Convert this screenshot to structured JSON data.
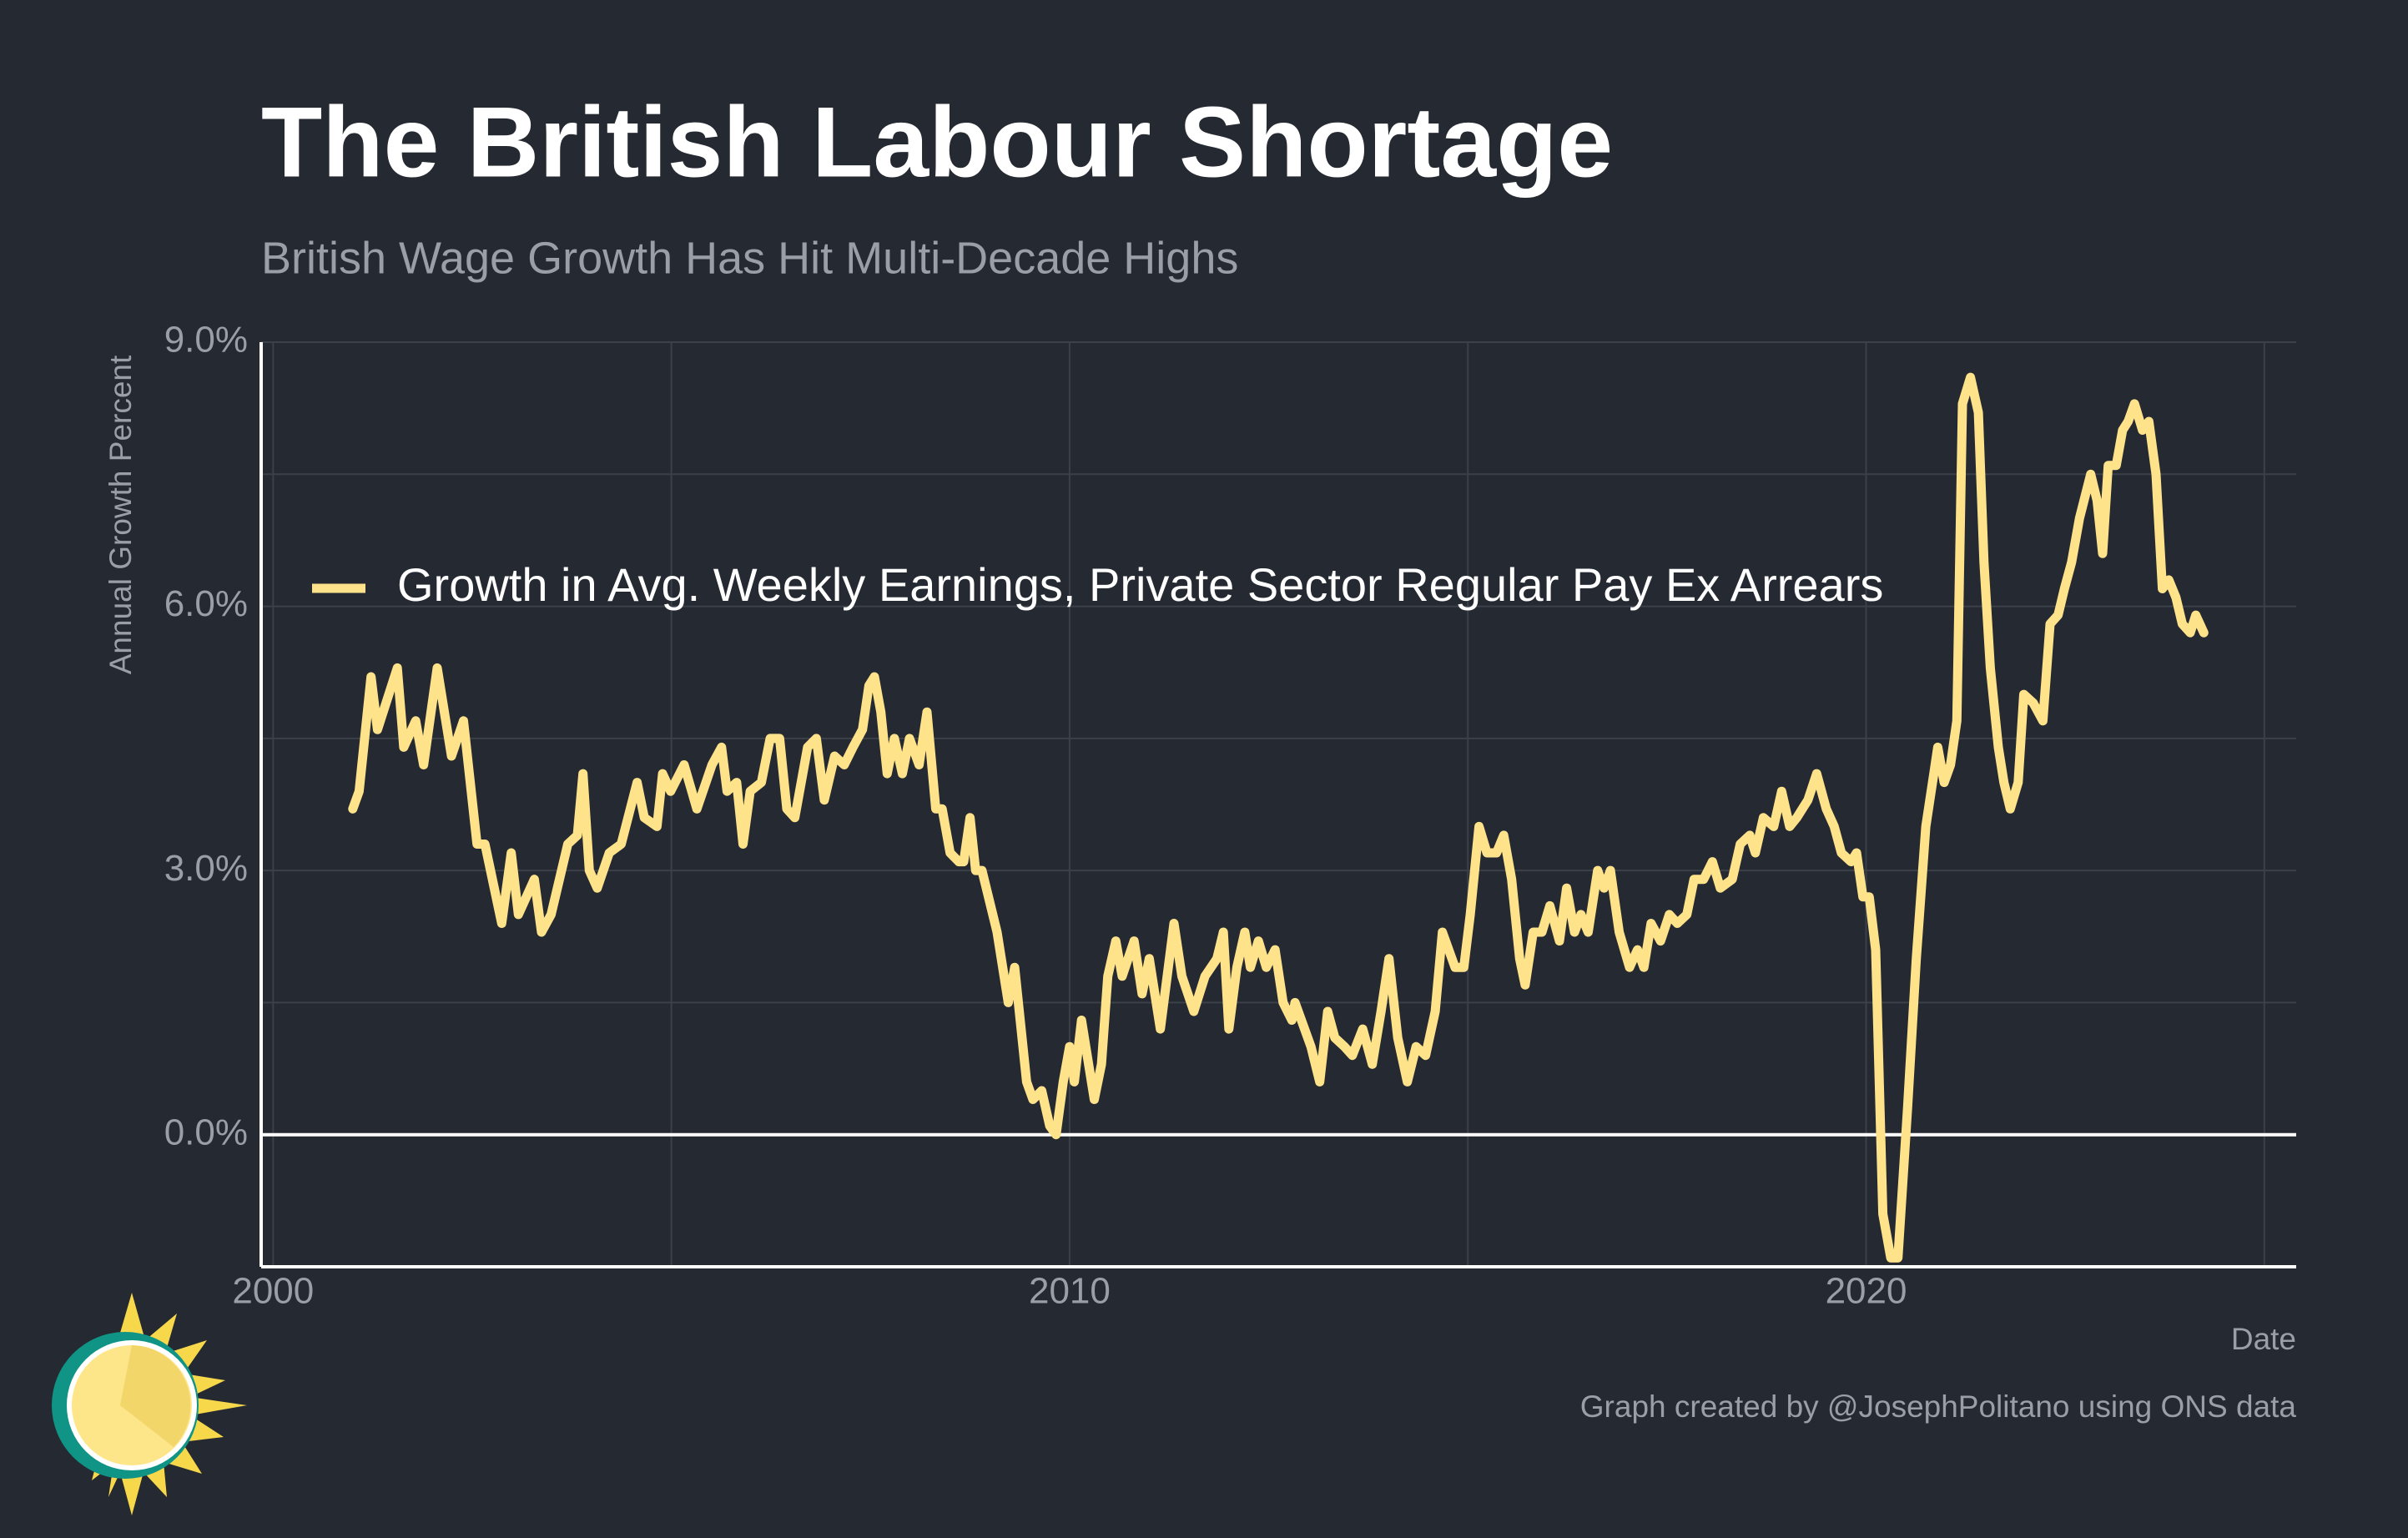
{
  "chart_data": {
    "type": "line",
    "title": "The British Labour Shortage",
    "subtitle": "British Wage Growth Has Hit Multi-Decade Highs",
    "y_label": "Annual Growth Percent",
    "x_label": "Date",
    "caption": "Graph created by @JosephPolitano using ONS data",
    "xlim": [
      1999.85,
      2025.4
    ],
    "xticks": [
      2000,
      2010,
      2020
    ],
    "x_minor_grid": [
      2005,
      2015,
      2025
    ],
    "ylim": [
      -1.5,
      9.0
    ],
    "yticks": [
      {
        "value": 0,
        "label": "0.0%"
      },
      {
        "value": 3,
        "label": "3.0%"
      },
      {
        "value": 6,
        "label": "6.0%"
      },
      {
        "value": 9,
        "label": "9.0%"
      }
    ],
    "y_minor_grid": [
      1.5,
      4.5,
      7.5
    ],
    "grid": true,
    "zero_line": true,
    "legend": "upper left",
    "x": [
      2001.0,
      2001.08,
      2001.23,
      2001.31,
      2001.56,
      2001.64,
      2001.79,
      2001.89,
      2002.06,
      2002.24,
      2002.39,
      2002.56,
      2002.66,
      2002.87,
      2002.99,
      2003.08,
      2003.28,
      2003.37,
      2003.49,
      2003.7,
      2003.82,
      2003.89,
      2003.97,
      2004.07,
      2004.22,
      2004.37,
      2004.57,
      2004.66,
      2004.82,
      2004.89,
      2004.99,
      2005.16,
      2005.32,
      2005.51,
      2005.63,
      2005.7,
      2005.82,
      2005.9,
      2005.99,
      2006.13,
      2006.24,
      2006.36,
      2006.45,
      2006.55,
      2006.71,
      2006.82,
      2006.92,
      2007.05,
      2007.17,
      2007.28,
      2007.4,
      2007.48,
      2007.55,
      2007.63,
      2007.71,
      2007.8,
      2007.9,
      2007.99,
      2008.11,
      2008.21,
      2008.32,
      2008.4,
      2008.5,
      2008.61,
      2008.67,
      2008.75,
      2008.82,
      2008.9,
      2009.09,
      2009.23,
      2009.31,
      2009.46,
      2009.54,
      2009.65,
      2009.75,
      2009.83,
      2009.92,
      2010.0,
      2010.06,
      2010.15,
      2010.31,
      2010.4,
      2010.48,
      2010.58,
      2010.66,
      2010.81,
      2010.91,
      2011.0,
      2011.14,
      2011.31,
      2011.41,
      2011.56,
      2011.7,
      2011.85,
      2011.93,
      2012.0,
      2012.1,
      2012.2,
      2012.27,
      2012.37,
      2012.47,
      2012.58,
      2012.68,
      2012.79,
      2012.83,
      2013.03,
      2013.14,
      2013.24,
      2013.33,
      2013.45,
      2013.55,
      2013.68,
      2013.8,
      2013.91,
      2014.01,
      2014.12,
      2014.24,
      2014.35,
      2014.47,
      2014.59,
      2014.68,
      2014.84,
      2014.95,
      2015.03,
      2015.14,
      2015.24,
      2015.36,
      2015.45,
      2015.55,
      2015.65,
      2015.72,
      2015.82,
      2015.93,
      2016.03,
      2016.15,
      2016.24,
      2016.34,
      2016.42,
      2016.51,
      2016.63,
      2016.71,
      2016.79,
      2016.9,
      2017.03,
      2017.13,
      2017.21,
      2017.3,
      2017.42,
      2017.53,
      2017.63,
      2017.75,
      2017.84,
      2017.96,
      2018.07,
      2018.17,
      2018.32,
      2018.42,
      2018.54,
      2018.61,
      2018.71,
      2018.84,
      2018.94,
      2019.04,
      2019.13,
      2019.27,
      2019.38,
      2019.5,
      2019.6,
      2019.69,
      2019.81,
      2019.88,
      2019.96,
      2020.04,
      2020.12,
      2020.21,
      2020.31,
      2020.4,
      2020.52,
      2020.63,
      2020.75,
      2020.85,
      2020.9,
      2020.98,
      2021.06,
      2021.14,
      2021.21,
      2021.31,
      2021.41,
      2021.48,
      2021.56,
      2021.66,
      2021.73,
      2021.81,
      2021.91,
      2021.98,
      2022.1,
      2022.22,
      2022.31,
      2022.41,
      2022.49,
      2022.58,
      2022.68,
      2022.82,
      2022.9,
      2022.97,
      2023.04,
      2023.14,
      2023.22,
      2023.29,
      2023.37,
      2023.47,
      2023.55,
      2023.64,
      2023.72,
      2023.8,
      2023.89,
      2023.97,
      2024.07,
      2024.14,
      2024.24
    ],
    "series": [
      {
        "name": "Growth in Avg. Weekly Earnings, Private Sector Regular Pay Ex Arrears",
        "color": "#fee38b",
        "values": [
          3.7,
          3.9,
          5.2,
          4.6,
          5.3,
          4.4,
          4.7,
          4.2,
          5.3,
          4.3,
          4.7,
          3.3,
          3.3,
          2.4,
          3.2,
          2.5,
          2.9,
          2.3,
          2.5,
          3.3,
          3.4,
          4.1,
          3.0,
          2.8,
          3.2,
          3.3,
          4.0,
          3.6,
          3.5,
          4.1,
          3.9,
          4.2,
          3.7,
          4.2,
          4.4,
          3.9,
          4.0,
          3.3,
          3.9,
          4.0,
          4.5,
          4.5,
          3.7,
          3.6,
          4.4,
          4.5,
          3.8,
          4.3,
          4.2,
          4.4,
          4.6,
          5.1,
          5.2,
          4.8,
          4.1,
          4.5,
          4.1,
          4.5,
          4.2,
          4.8,
          3.7,
          3.7,
          3.2,
          3.1,
          3.1,
          3.6,
          3.0,
          3.0,
          2.3,
          1.5,
          1.9,
          0.6,
          0.4,
          0.5,
          0.1,
          0.0,
          0.6,
          1.0,
          0.6,
          1.3,
          0.4,
          0.8,
          1.8,
          2.2,
          1.8,
          2.2,
          1.6,
          2.0,
          1.2,
          2.4,
          1.8,
          1.4,
          1.8,
          2.0,
          2.3,
          1.2,
          1.9,
          2.3,
          1.9,
          2.2,
          1.9,
          2.1,
          1.5,
          1.3,
          1.5,
          1.0,
          0.6,
          1.4,
          1.1,
          1.0,
          0.9,
          1.2,
          0.8,
          1.4,
          2.0,
          1.1,
          0.6,
          1.0,
          0.9,
          1.4,
          2.3,
          1.9,
          1.9,
          2.5,
          3.5,
          3.2,
          3.2,
          3.4,
          2.9,
          2.0,
          1.7,
          2.3,
          2.3,
          2.6,
          2.2,
          2.8,
          2.3,
          2.5,
          2.3,
          3.0,
          2.8,
          3.0,
          2.3,
          1.9,
          2.1,
          1.9,
          2.4,
          2.2,
          2.5,
          2.4,
          2.5,
          2.9,
          2.9,
          3.1,
          2.8,
          2.9,
          3.3,
          3.4,
          3.2,
          3.6,
          3.5,
          3.9,
          3.5,
          3.6,
          3.8,
          4.1,
          3.7,
          3.5,
          3.2,
          3.1,
          3.2,
          2.7,
          2.7,
          2.1,
          -0.9,
          -1.4,
          -1.4,
          0.3,
          2.0,
          3.5,
          4.1,
          4.4,
          4.0,
          4.2,
          4.7,
          8.3,
          8.6,
          8.2,
          6.5,
          5.3,
          4.4,
          4.0,
          3.7,
          4.0,
          5.0,
          4.9,
          4.7,
          5.8,
          5.9,
          6.2,
          6.5,
          7.0,
          7.5,
          7.2,
          6.6,
          7.6,
          7.6,
          8.0,
          8.1,
          8.3,
          8.0,
          8.1,
          7.5,
          6.2,
          6.3,
          6.1,
          5.8,
          5.7,
          5.9,
          5.7
        ]
      }
    ]
  }
}
